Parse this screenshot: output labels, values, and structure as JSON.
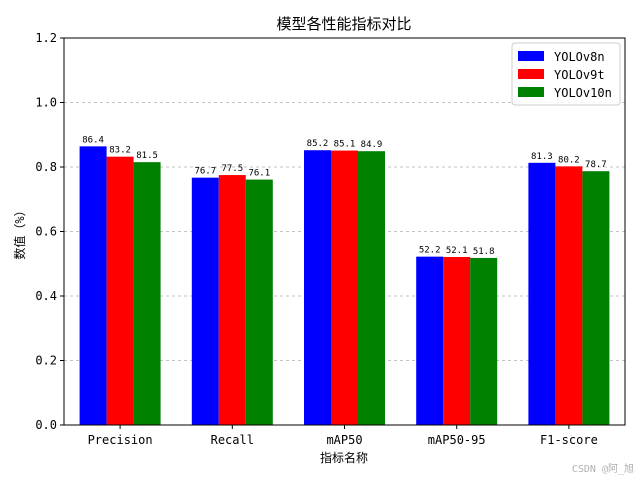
{
  "chart_data": {
    "type": "bar",
    "title": "模型各性能指标对比",
    "xlabel": "指标名称",
    "ylabel": "数值（%）",
    "ylim": [
      0,
      1.2
    ],
    "yticks": [
      "0.0",
      "0.2",
      "0.4",
      "0.6",
      "0.8",
      "1.0",
      "1.2"
    ],
    "grid": "y-dashed",
    "legend_position": "top-right",
    "categories": [
      "Precision",
      "Recall",
      "mAP50",
      "mAP50-95",
      "F1-score"
    ],
    "series": [
      {
        "name": "YOLOv8n",
        "color": "#0000ff",
        "values": [
          0.864,
          0.767,
          0.852,
          0.522,
          0.813
        ],
        "labels": [
          "86.4",
          "76.7",
          "85.2",
          "52.2",
          "81.3"
        ]
      },
      {
        "name": "YOLOv9t",
        "color": "#ff0000",
        "values": [
          0.832,
          0.775,
          0.851,
          0.521,
          0.802
        ],
        "labels": [
          "83.2",
          "77.5",
          "85.1",
          "52.1",
          "80.2"
        ]
      },
      {
        "name": "YOLOv10n",
        "color": "#008000",
        "values": [
          0.815,
          0.761,
          0.849,
          0.518,
          0.787
        ],
        "labels": [
          "81.5",
          "76.1",
          "84.9",
          "51.8",
          "78.7"
        ]
      }
    ]
  },
  "watermark": "CSDN @阿_旭"
}
